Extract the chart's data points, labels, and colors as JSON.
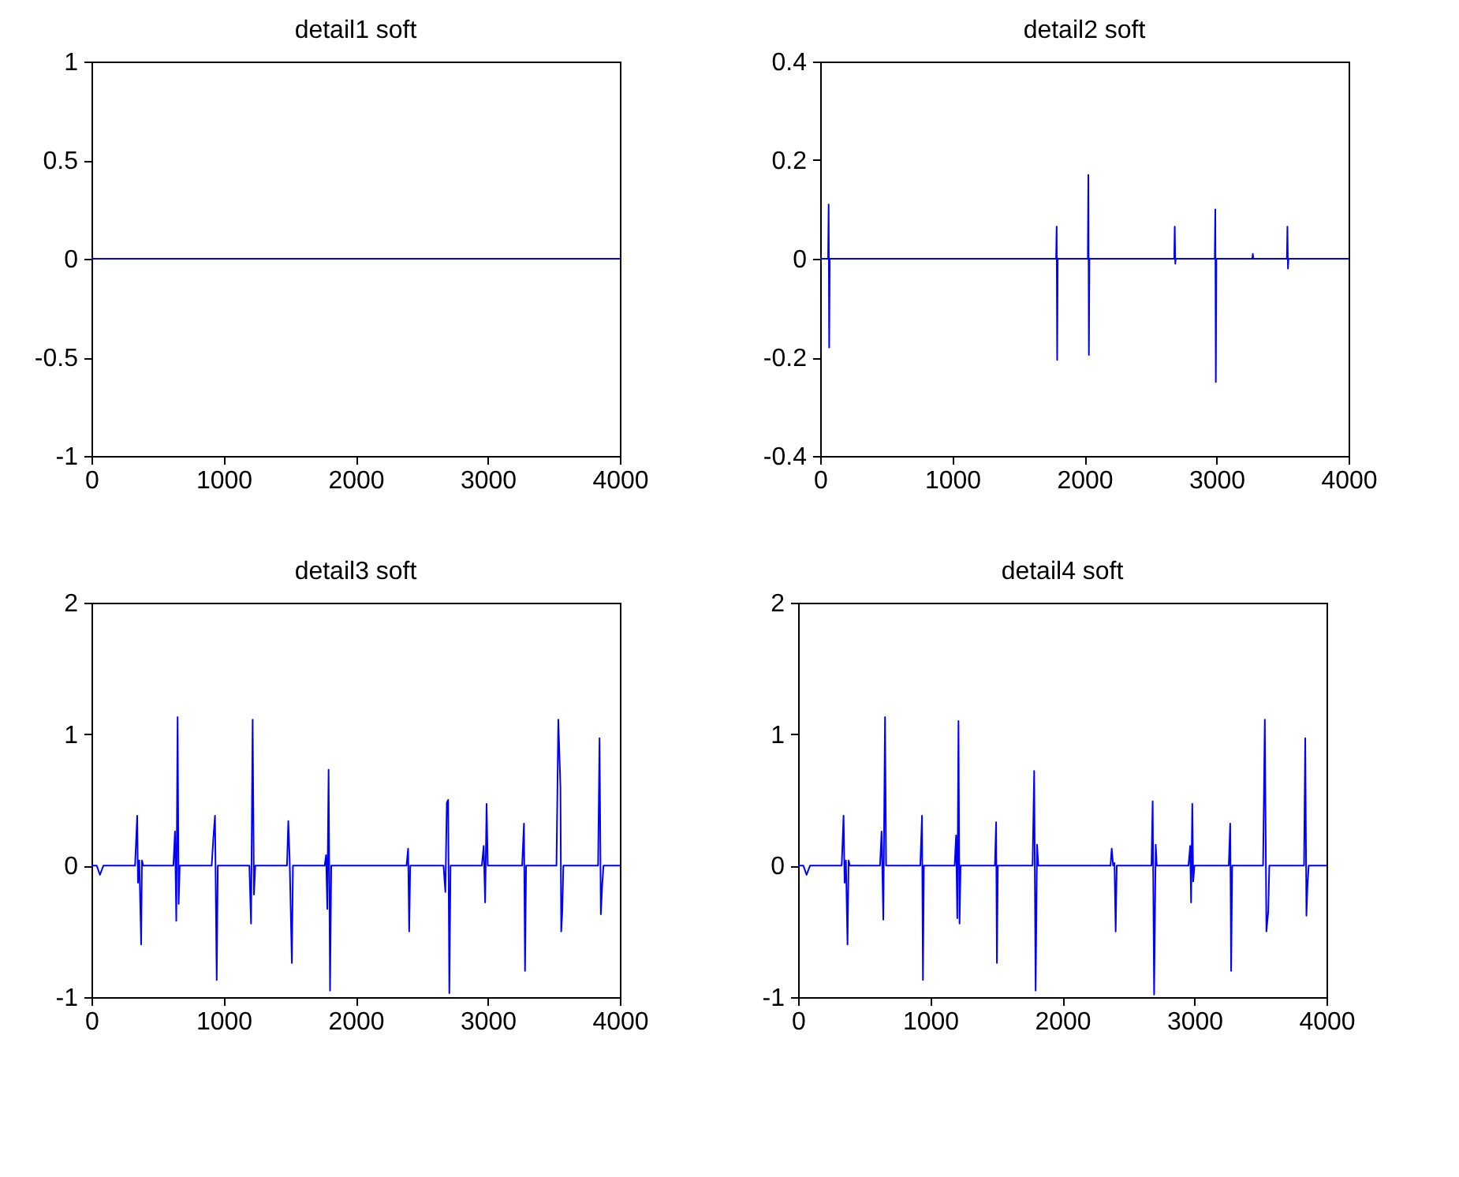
{
  "chart_data": [
    {
      "type": "line",
      "title": "detail1 soft",
      "xlim": [
        0,
        4000
      ],
      "xticks": [
        0,
        1000,
        2000,
        3000,
        4000
      ],
      "ylim": [
        -1,
        1
      ],
      "yticks": [
        -1,
        -0.5,
        0,
        0.5,
        1
      ],
      "grid": false,
      "series": [
        {
          "color": "#0000ff",
          "x": [
            0,
            4000
          ],
          "values": [
            0,
            0
          ]
        }
      ]
    },
    {
      "type": "line",
      "title": "detail2 soft",
      "xlim": [
        0,
        4000
      ],
      "xticks": [
        0,
        1000,
        2000,
        3000,
        4000
      ],
      "ylim": [
        -0.4,
        0.4
      ],
      "yticks": [
        -0.4,
        -0.2,
        0,
        0.2,
        0.4
      ],
      "grid": false,
      "series": [
        {
          "color": "#0000ff",
          "x": [
            0,
            60,
            64,
            68,
            72,
            1786,
            1790,
            1794,
            1798,
            2026,
            2030,
            2034,
            2038,
            2680,
            2684,
            2688,
            2692,
            2987,
            2991,
            2995,
            2999,
            3271,
            3275,
            3279,
            3533,
            3537,
            3541,
            3545,
            4000
          ],
          "values": [
            0,
            0,
            0.11,
            -0.18,
            0,
            0,
            0.065,
            -0.205,
            0,
            0,
            0.17,
            -0.195,
            0,
            0,
            0.065,
            -0.01,
            0,
            0,
            0.1,
            -0.25,
            0,
            0,
            0.01,
            0,
            0,
            0.065,
            -0.02,
            0,
            0
          ]
        }
      ]
    },
    {
      "type": "line",
      "title": "detail3 soft",
      "xlim": [
        0,
        4000
      ],
      "xticks": [
        0,
        1000,
        2000,
        3000,
        4000
      ],
      "ylim": [
        -1,
        2
      ],
      "yticks": [
        -1,
        0,
        1,
        2
      ],
      "grid": false,
      "series": [
        {
          "color": "#0000ff",
          "x": [
            0,
            40,
            64,
            90,
            330,
            346,
            352,
            362,
            376,
            382,
            392,
            620,
            632,
            642,
            652,
            660,
            668,
            910,
            922,
            935,
            948,
            956,
            1195,
            1208,
            1220,
            1230,
            1240,
            1480,
            1490,
            1500,
            1517,
            1525,
            1765,
            1776,
            1785,
            1795,
            1806,
            1815,
            2385,
            2397,
            2405,
            2413,
            2665,
            2679,
            2690,
            2700,
            2709,
            2718,
            2955,
            2969,
            2980,
            2991,
            3000,
            3260,
            3274,
            3282,
            3290,
            3520,
            3534,
            3550,
            3556,
            3564,
            3572,
            3835,
            3846,
            3856,
            3866,
            3876,
            4000
          ],
          "values": [
            0,
            0,
            -0.07,
            0,
            0,
            0.38,
            -0.13,
            0.04,
            -0.6,
            0.04,
            0,
            0,
            0.26,
            -0.42,
            1.13,
            -0.29,
            0,
            0,
            0.2,
            0.38,
            -0.87,
            0,
            0,
            -0.44,
            1.11,
            -0.22,
            0,
            0,
            0.34,
            0.05,
            -0.74,
            0,
            0,
            0.08,
            -0.33,
            0.73,
            -0.95,
            0,
            0,
            0.13,
            -0.5,
            0,
            0,
            -0.2,
            0.48,
            0.5,
            -0.97,
            0,
            0,
            0.15,
            -0.28,
            0.47,
            0,
            0,
            0.32,
            -0.8,
            0,
            0,
            1.11,
            0.6,
            -0.5,
            -0.35,
            0,
            0,
            0.97,
            -0.37,
            -0.15,
            0,
            0
          ]
        }
      ]
    },
    {
      "type": "line",
      "title": "detail4 soft",
      "xlim": [
        0,
        4000
      ],
      "xticks": [
        0,
        1000,
        2000,
        3000,
        4000
      ],
      "ylim": [
        -1,
        2
      ],
      "yticks": [
        -1,
        0,
        1,
        2
      ],
      "grid": false,
      "series": [
        {
          "color": "#0000ff",
          "x": [
            0,
            40,
            64,
            90,
            330,
            344,
            352,
            362,
            374,
            382,
            392,
            620,
            632,
            645,
            658,
            666,
            925,
            938,
            945,
            952,
            1185,
            1196,
            1205,
            1214,
            1222,
            1230,
            1490,
            1499,
            1505,
            1512,
            1775,
            1787,
            1798,
            1809,
            1818,
            2365,
            2374,
            2385,
            2395,
            2404,
            2412,
            2675,
            2684,
            2695,
            2707,
            2715,
            2955,
            2968,
            2975,
            2984,
            2991,
            3000,
            3260,
            3271,
            3278,
            3286,
            3520,
            3533,
            3545,
            3559,
            3567,
            3830,
            3839,
            3848,
            3856,
            3865,
            4000
          ],
          "values": [
            0,
            0,
            -0.07,
            0,
            0,
            0.38,
            -0.13,
            0.04,
            -0.6,
            0.04,
            0,
            0,
            0.26,
            -0.41,
            1.13,
            0,
            0,
            0.38,
            -0.87,
            0,
            0,
            0.23,
            -0.4,
            1.1,
            -0.44,
            0,
            0,
            0.33,
            -0.74,
            0,
            0,
            0.72,
            -0.95,
            0.16,
            0,
            0,
            0.13,
            0,
            0.02,
            -0.5,
            0,
            0,
            0.49,
            -0.98,
            0.16,
            0,
            0,
            0.15,
            -0.28,
            0.47,
            -0.12,
            0,
            0,
            0.32,
            -0.8,
            0,
            0,
            1.11,
            -0.5,
            -0.35,
            0,
            0,
            0.97,
            -0.38,
            -0.15,
            0,
            0
          ]
        }
      ]
    }
  ]
}
